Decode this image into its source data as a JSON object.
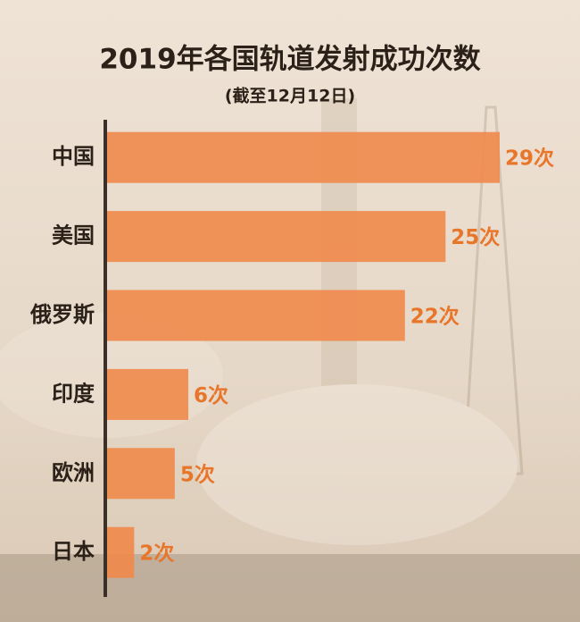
{
  "chart_data": {
    "type": "bar",
    "orientation": "horizontal",
    "title": "2019年各国轨道发射成功次数",
    "subtitle": "(截至12月12日)",
    "categories": [
      "中国",
      "美国",
      "俄罗斯",
      "印度",
      "欧洲",
      "日本"
    ],
    "values": [
      29,
      25,
      22,
      6,
      5,
      2
    ],
    "value_labels": [
      "29次",
      "25次",
      "22次",
      "6次",
      "5次",
      "2次"
    ],
    "color": "#f08a4b"
  }
}
